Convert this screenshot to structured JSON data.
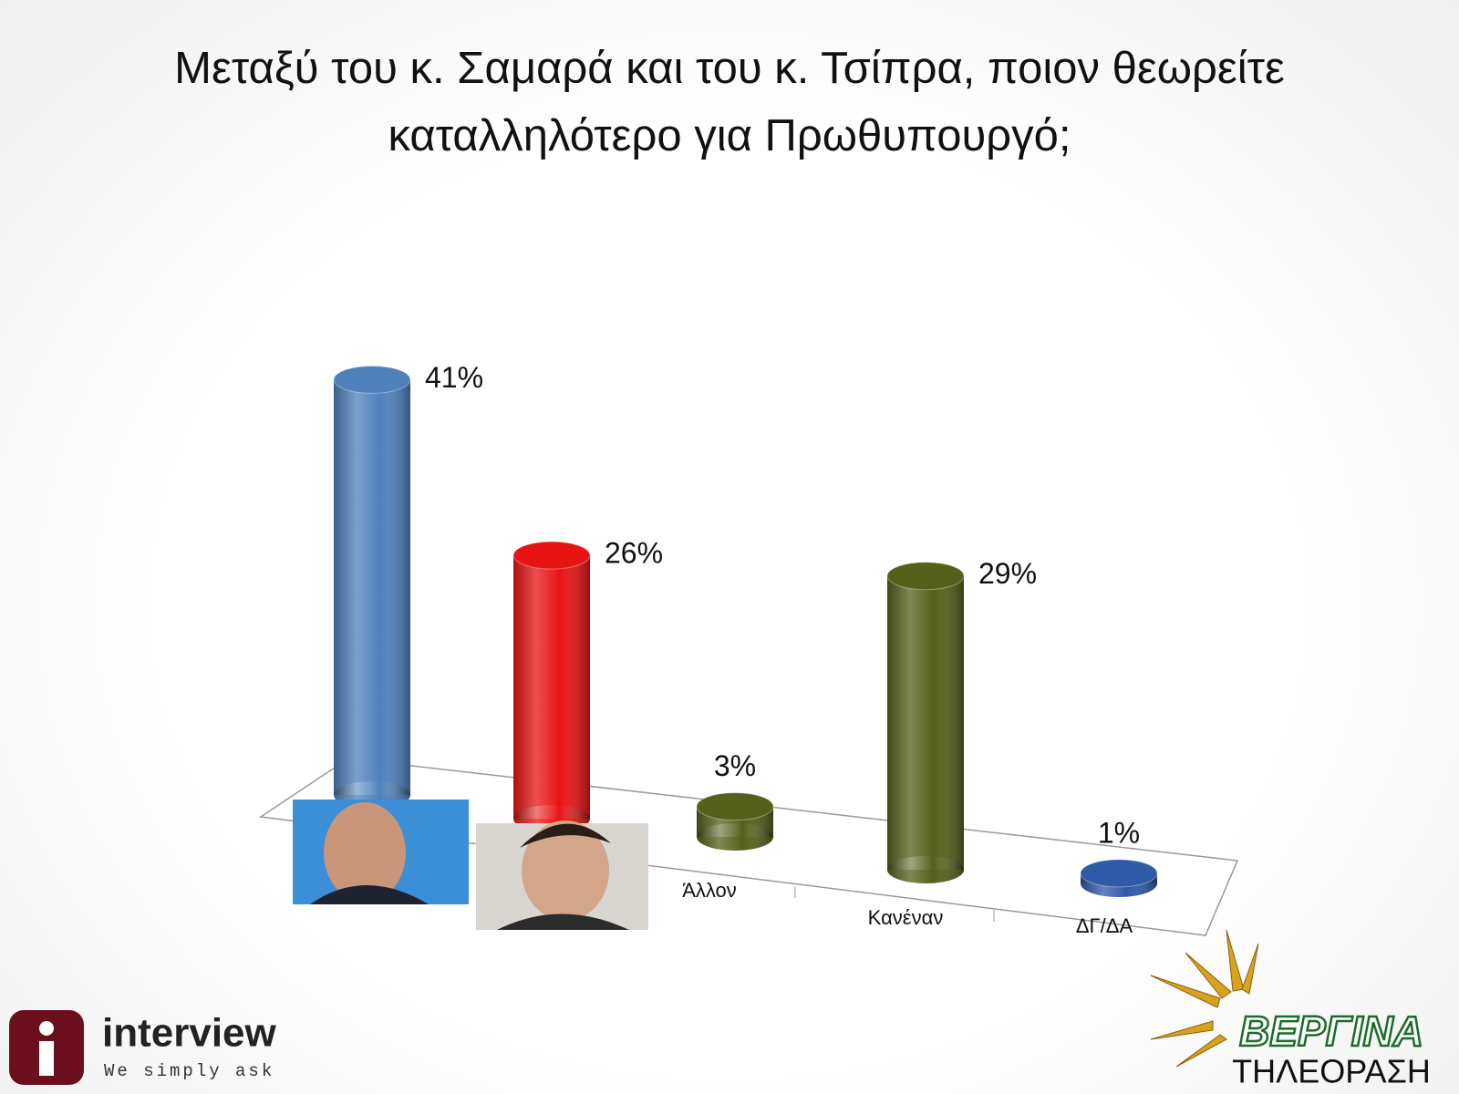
{
  "chart_data": {
    "type": "bar3d",
    "title": "Μεταξύ του κ. Σαμαρά και του κ. Τσίπρα, ποιον θεωρείτε καταλληλότερο για Πρωθυπουργό;",
    "categories": [
      null,
      null,
      "Άλλον",
      "Κανέναν",
      "ΔΓ/ΔΑ"
    ],
    "values": [
      41,
      26,
      3,
      29,
      1
    ],
    "value_labels": [
      "41%",
      "26%",
      "3%",
      "29%",
      "1%"
    ],
    "colors": [
      "#4f81bd",
      "#e81414",
      "#55601a",
      "#55601a",
      "#2f5aa8"
    ],
    "ylim": [
      0,
      45
    ]
  },
  "logos": {
    "left_name": "interview",
    "left_tagline": "We simply ask",
    "right_name": "ΒΕΡΓΙΝΑ",
    "right_tagline": "ΤΗΛΕΟΡΑΣΗ"
  }
}
